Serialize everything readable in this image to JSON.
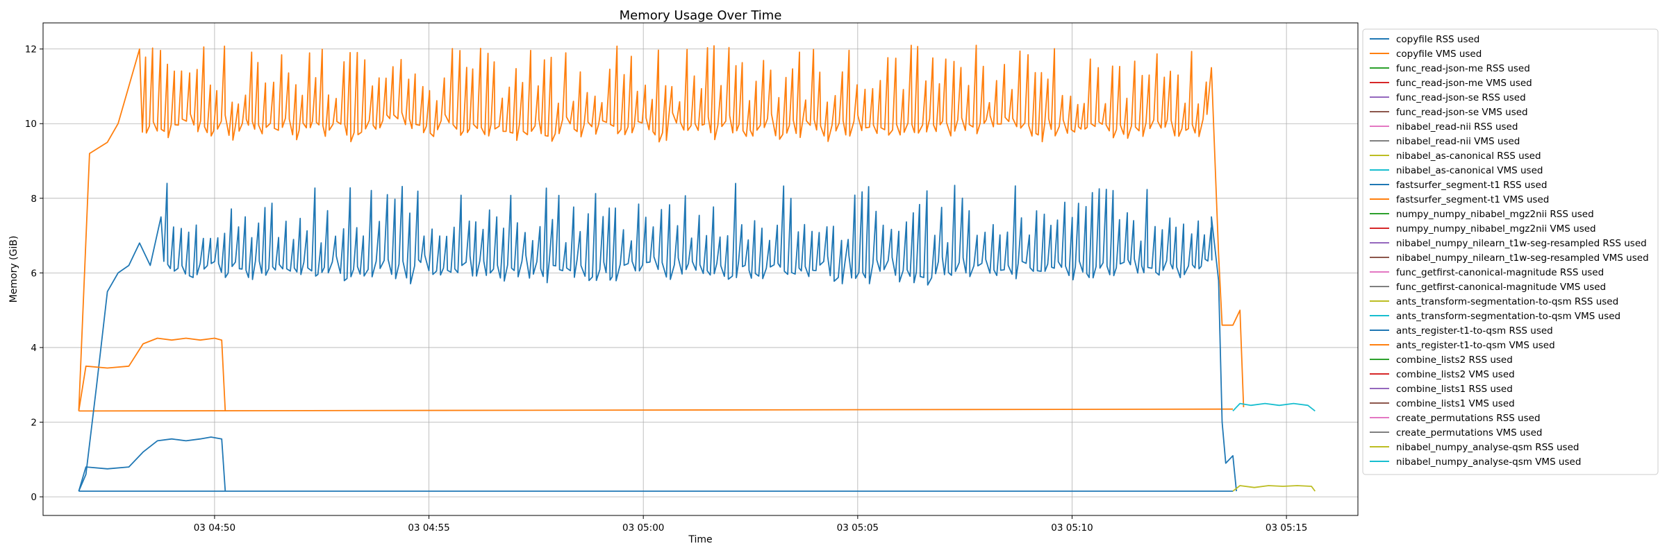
{
  "chart_data": {
    "type": "line",
    "title": "Memory Usage Over Time",
    "xlabel": "Time",
    "ylabel": "Memory (GiB)",
    "xlim": [
      "04:46:00",
      "05:16:40"
    ],
    "ylim": [
      -0.5,
      12.7
    ],
    "grid": true,
    "legend_position": "outside right, upper",
    "x_ticks": [
      {
        "time": "04:50:00",
        "label": "03 04:50"
      },
      {
        "time": "04:55:00",
        "label": "03 04:55"
      },
      {
        "time": "05:00:00",
        "label": "03 05:00"
      },
      {
        "time": "05:05:00",
        "label": "03 05:05"
      },
      {
        "time": "05:10:00",
        "label": "03 05:10"
      },
      {
        "time": "05:15:00",
        "label": "03 05:15"
      }
    ],
    "y_ticks": [
      0,
      2,
      4,
      6,
      8,
      10,
      12
    ],
    "series": [
      {
        "name": "copyfile RSS used",
        "color": "#1f77b4",
        "points": [
          [
            "04:46:50",
            0.15
          ],
          [
            "05:13:45",
            0.15
          ]
        ]
      },
      {
        "name": "copyfile VMS used",
        "color": "#ff7f0e",
        "points": [
          [
            "04:46:50",
            2.3
          ],
          [
            "05:13:45",
            2.35
          ]
        ]
      },
      {
        "name": "func_read-json-me RSS used",
        "color": "#2ca02c",
        "points": []
      },
      {
        "name": "func_read-json-me VMS used",
        "color": "#d62728",
        "points": []
      },
      {
        "name": "func_read-json-se RSS used",
        "color": "#9467bd",
        "points": []
      },
      {
        "name": "func_read-json-se VMS used",
        "color": "#8c564b",
        "points": []
      },
      {
        "name": "nibabel_read-nii RSS used",
        "color": "#e377c2",
        "points": []
      },
      {
        "name": "nibabel_read-nii VMS used",
        "color": "#7f7f7f",
        "points": []
      },
      {
        "name": "nibabel_as-canonical RSS used",
        "color": "#bcbd22",
        "points": []
      },
      {
        "name": "nibabel_as-canonical VMS used",
        "color": "#17becf",
        "points": []
      },
      {
        "name": "fastsurfer_segment-t1 RSS used",
        "color": "#1f77b4",
        "points": [
          [
            "04:46:50",
            0.15
          ],
          [
            "04:47:00",
            0.6
          ],
          [
            "04:47:15",
            3.0
          ],
          [
            "04:47:30",
            5.5
          ],
          [
            "04:47:45",
            6.0
          ],
          [
            "04:48:00",
            6.2
          ],
          [
            "04:48:15",
            6.8
          ],
          [
            "04:48:30",
            6.2
          ],
          [
            "04:48:45",
            7.5
          ],
          [
            "05:13:15",
            7.5
          ],
          [
            "05:13:25",
            5.8
          ],
          [
            "05:13:30",
            2.0
          ],
          [
            "05:13:35",
            0.9
          ],
          [
            "05:13:45",
            1.1
          ],
          [
            "05:13:50",
            0.15
          ]
        ]
      },
      {
        "name": "fastsurfer_segment-t1 VMS used",
        "color": "#ff7f0e",
        "points": [
          [
            "04:46:50",
            2.3
          ],
          [
            "04:47:05",
            9.2
          ],
          [
            "04:47:30",
            9.5
          ],
          [
            "04:47:45",
            10.0
          ],
          [
            "04:48:00",
            11.0
          ],
          [
            "04:48:15",
            12.0
          ],
          [
            "05:13:15",
            11.5
          ],
          [
            "05:13:25",
            6.5
          ],
          [
            "05:13:30",
            4.6
          ],
          [
            "05:13:45",
            4.6
          ],
          [
            "05:13:55",
            5.0
          ],
          [
            "05:14:00",
            2.4
          ]
        ]
      },
      {
        "name": "numpy_numpy_nibabel_mgz2nii RSS used",
        "color": "#2ca02c",
        "points": []
      },
      {
        "name": "numpy_numpy_nibabel_mgz2nii VMS used",
        "color": "#d62728",
        "points": []
      },
      {
        "name": "nibabel_numpy_nilearn_t1w-seg-resampled RSS used",
        "color": "#9467bd",
        "points": []
      },
      {
        "name": "nibabel_numpy_nilearn_t1w-seg-resampled VMS used",
        "color": "#8c564b",
        "points": []
      },
      {
        "name": "func_getfirst-canonical-magnitude RSS used",
        "color": "#e377c2",
        "points": []
      },
      {
        "name": "func_getfirst-canonical-magnitude VMS used",
        "color": "#7f7f7f",
        "points": []
      },
      {
        "name": "ants_transform-segmentation-to-qsm RSS used",
        "color": "#bcbd22",
        "points": []
      },
      {
        "name": "ants_transform-segmentation-to-qsm VMS used",
        "color": "#17becf",
        "points": []
      },
      {
        "name": "ants_register-t1-to-qsm RSS used",
        "color": "#1f77b4",
        "points": [
          [
            "04:46:50",
            0.15
          ],
          [
            "04:47:00",
            0.8
          ],
          [
            "04:47:30",
            0.75
          ],
          [
            "04:48:00",
            0.8
          ],
          [
            "04:48:20",
            1.2
          ],
          [
            "04:48:40",
            1.5
          ],
          [
            "04:49:00",
            1.55
          ],
          [
            "04:49:20",
            1.5
          ],
          [
            "04:49:40",
            1.55
          ],
          [
            "04:49:55",
            1.6
          ],
          [
            "04:50:10",
            1.55
          ],
          [
            "04:50:15",
            0.15
          ]
        ]
      },
      {
        "name": "ants_register-t1-to-qsm VMS used",
        "color": "#ff7f0e",
        "points": [
          [
            "04:46:50",
            2.3
          ],
          [
            "04:47:00",
            3.5
          ],
          [
            "04:47:30",
            3.45
          ],
          [
            "04:48:00",
            3.5
          ],
          [
            "04:48:20",
            4.1
          ],
          [
            "04:48:40",
            4.25
          ],
          [
            "04:49:00",
            4.2
          ],
          [
            "04:49:20",
            4.25
          ],
          [
            "04:49:40",
            4.2
          ],
          [
            "04:50:00",
            4.25
          ],
          [
            "04:50:10",
            4.2
          ],
          [
            "04:50:15",
            2.3
          ]
        ]
      },
      {
        "name": "combine_lists2 RSS used",
        "color": "#2ca02c",
        "points": []
      },
      {
        "name": "combine_lists2 VMS used",
        "color": "#d62728",
        "points": []
      },
      {
        "name": "combine_lists1 RSS used",
        "color": "#9467bd",
        "points": []
      },
      {
        "name": "combine_lists1 VMS used",
        "color": "#8c564b",
        "points": []
      },
      {
        "name": "create_permutations RSS used",
        "color": "#e377c2",
        "points": []
      },
      {
        "name": "create_permutations VMS used",
        "color": "#7f7f7f",
        "points": []
      },
      {
        "name": "nibabel_numpy_analyse-qsm RSS used",
        "color": "#bcbd22",
        "points": [
          [
            "05:13:45",
            0.15
          ],
          [
            "05:13:55",
            0.3
          ],
          [
            "05:14:15",
            0.25
          ],
          [
            "05:14:35",
            0.3
          ],
          [
            "05:14:55",
            0.28
          ],
          [
            "05:15:15",
            0.3
          ],
          [
            "05:15:35",
            0.28
          ],
          [
            "05:15:40",
            0.15
          ]
        ]
      },
      {
        "name": "nibabel_numpy_analyse-qsm VMS used",
        "color": "#17becf",
        "points": [
          [
            "05:13:45",
            2.3
          ],
          [
            "05:13:55",
            2.5
          ],
          [
            "05:14:10",
            2.45
          ],
          [
            "05:14:30",
            2.5
          ],
          [
            "05:14:50",
            2.45
          ],
          [
            "05:15:10",
            2.5
          ],
          [
            "05:15:30",
            2.45
          ],
          [
            "05:15:40",
            2.3
          ]
        ]
      }
    ]
  }
}
